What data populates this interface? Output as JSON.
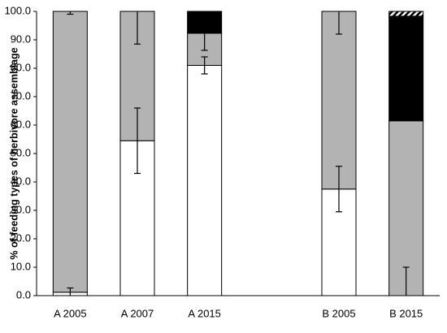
{
  "chart_data": {
    "type": "stacked-bar",
    "y_label": "% of feeding types of herbivore assemblage",
    "categories": [
      "A 2005",
      "A 2007",
      "A 2015",
      null,
      "B 2005",
      "B 2015"
    ],
    "series": [
      {
        "color": "#ffffff",
        "values": [
          1.2,
          54.5,
          81,
          null,
          37.5,
          0
        ],
        "errors": [
          1.5,
          11.5,
          3,
          null,
          8,
          10
        ]
      },
      {
        "color": "#b3b3b3",
        "values": [
          98.8,
          45.5,
          11.3,
          null,
          62.5,
          61.5
        ],
        "errors": [
          1,
          11.5,
          6,
          null,
          8,
          null
        ]
      },
      {
        "color": "#000000",
        "values": [
          0,
          0,
          7.7,
          null,
          0,
          36.8
        ]
      },
      {
        "color": "#000000",
        "hatch": true,
        "values": [
          0,
          0,
          0,
          null,
          0,
          1.7
        ]
      }
    ],
    "ylim": [
      0,
      100
    ],
    "yticks": [
      {
        "value": 0,
        "label": "0.0"
      },
      {
        "value": 10,
        "label": "10.0"
      },
      {
        "value": 20,
        "label": "20.0"
      },
      {
        "value": 30,
        "label": "30.0"
      },
      {
        "value": 40,
        "label": "40.0"
      },
      {
        "value": 50,
        "label": "50.0"
      },
      {
        "value": 60,
        "label": "60.0"
      },
      {
        "value": 70,
        "label": "70.0"
      },
      {
        "value": 80,
        "label": "80.0"
      },
      {
        "value": 90,
        "label": "90.0"
      },
      {
        "value": 100,
        "label": "100.0"
      }
    ]
  }
}
